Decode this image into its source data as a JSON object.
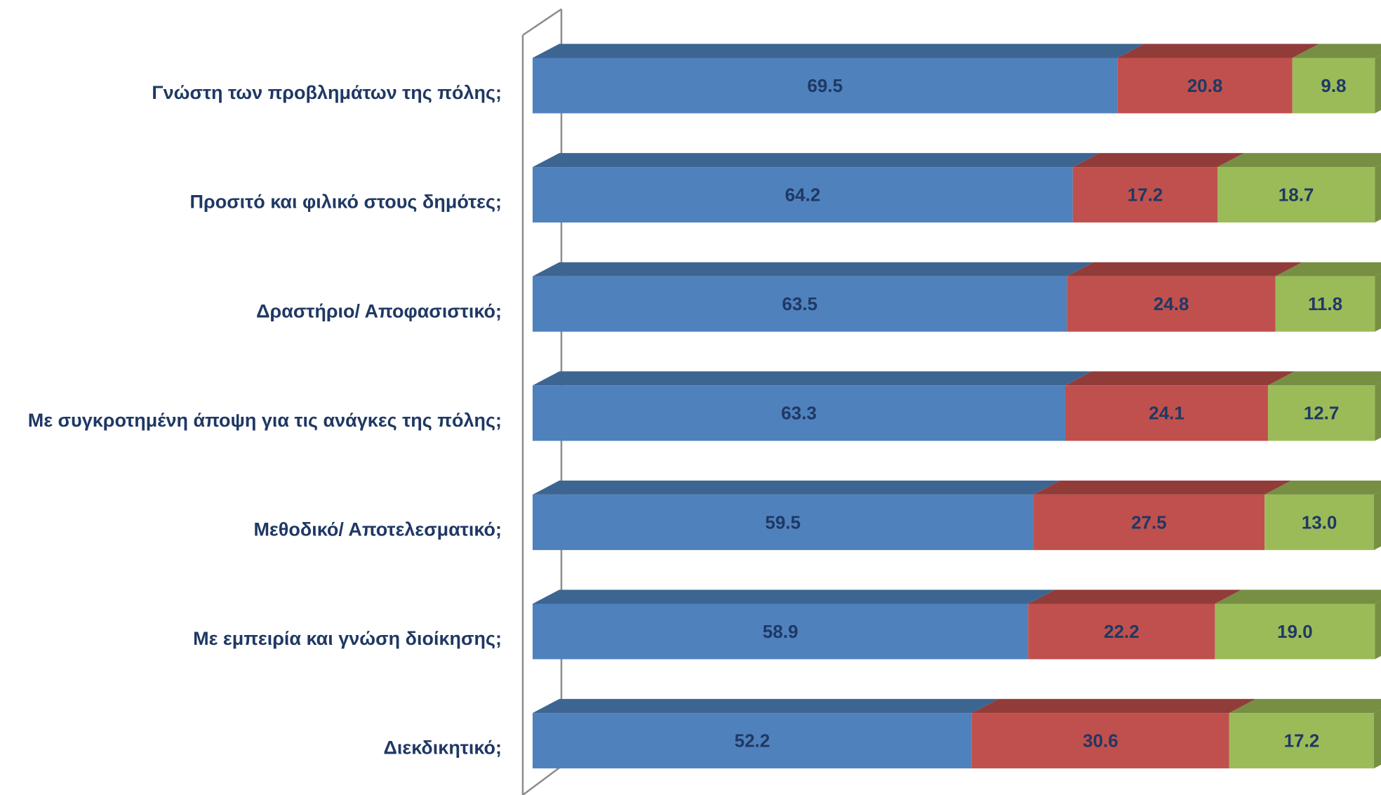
{
  "chart_data": {
    "type": "bar",
    "orientation": "horizontal",
    "stacked": true,
    "categories": [
      "Γνώστη των προβλημάτων της πόλης;",
      "Προσιτό και φιλικό στους δημότες;",
      "Δραστήριο/ Αποφασιστικό;",
      "Με συγκροτημένη άποψη για τις ανάγκες της πόλης;",
      "Μεθοδικό/ Αποτελεσματικό;",
      "Με εμπειρία και γνώση διοίκησης;",
      "Διεκδικητικό;"
    ],
    "series": [
      {
        "color": "#4f81bd",
        "top_color": "#3d6592",
        "values": [
          69.5,
          64.2,
          63.5,
          63.3,
          59.5,
          58.9,
          52.2
        ],
        "value_labels": [
          "69.5",
          "64.2",
          "63.5",
          "63.3",
          "59.5",
          "58.9",
          "52.2"
        ]
      },
      {
        "color": "#c0504d",
        "top_color": "#923c3a",
        "values": [
          20.8,
          17.2,
          24.8,
          24.1,
          27.5,
          22.2,
          30.6
        ],
        "value_labels": [
          "20.8",
          "17.2",
          "24.8",
          "24.1",
          "27.5",
          "22.2",
          "30.6"
        ]
      },
      {
        "color": "#9bbb59",
        "top_color": "#768f43",
        "values": [
          9.8,
          18.7,
          11.8,
          12.7,
          13,
          19,
          17.2
        ],
        "value_labels": [
          "9.8",
          "18.7",
          "11.8",
          "12.7",
          "13.0",
          "19.0",
          "17.2"
        ]
      }
    ],
    "xlim": [
      0,
      100
    ]
  }
}
